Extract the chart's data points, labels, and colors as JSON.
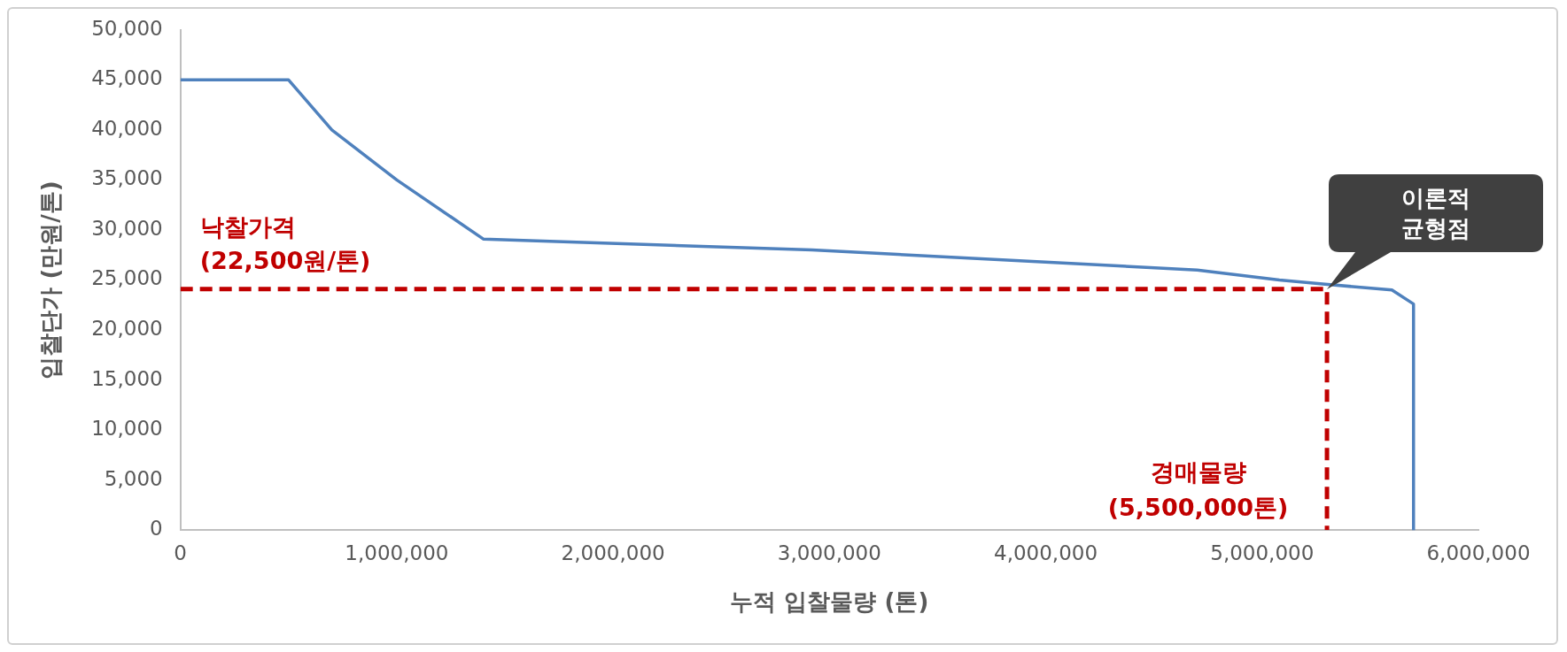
{
  "chart_data": {
    "type": "line",
    "xlabel": "누적 입찰물량 (톤)",
    "ylabel": "입찰단가 (만원/톤)",
    "xlim": [
      0,
      6000000
    ],
    "xticks": [
      {
        "value": 0,
        "label": "0"
      },
      {
        "value": 1000000,
        "label": "1,000,000"
      },
      {
        "value": 2000000,
        "label": "2,000,000"
      },
      {
        "value": 3000000,
        "label": "3,000,000"
      },
      {
        "value": 4000000,
        "label": "4,000,000"
      },
      {
        "value": 5000000,
        "label": "5,000,000"
      },
      {
        "value": 6000000,
        "label": "6,000,000"
      }
    ],
    "ylim": [
      0,
      50000
    ],
    "yticks": [
      {
        "value": 0,
        "label": "0"
      },
      {
        "value": 5000,
        "label": "5,000"
      },
      {
        "value": 10000,
        "label": "10,000"
      },
      {
        "value": 15000,
        "label": "15,000"
      },
      {
        "value": 20000,
        "label": "20,000"
      },
      {
        "value": 25000,
        "label": "25,000"
      },
      {
        "value": 30000,
        "label": "30,000"
      },
      {
        "value": 35000,
        "label": "35,000"
      },
      {
        "value": 40000,
        "label": "40,000"
      },
      {
        "value": 45000,
        "label": "45,000"
      },
      {
        "value": 50000,
        "label": "50,000"
      }
    ],
    "grid": false,
    "legend": false,
    "marker": "none",
    "series": [
      {
        "color": "#4f81bd",
        "line_style": "solid",
        "x": [
          0,
          500000,
          700000,
          1000000,
          1400000,
          2920000,
          4700000,
          5080000,
          5280000,
          5600000,
          5700000,
          5700000
        ],
        "values": [
          45000,
          45000,
          40000,
          35000,
          29100,
          28000,
          26000,
          25000,
          24600,
          24000,
          22600,
          0
        ]
      },
      {
        "color": "#c00000",
        "line_style": "dashed",
        "x": [
          0,
          5300000,
          5300000
        ],
        "values": [
          24100,
          24100,
          0
        ]
      }
    ],
    "annotations": [
      "낙찰가격\n(22,500원/톤)",
      "경매물량\n(5,500,000톤)",
      "이론적\n균형점"
    ]
  }
}
